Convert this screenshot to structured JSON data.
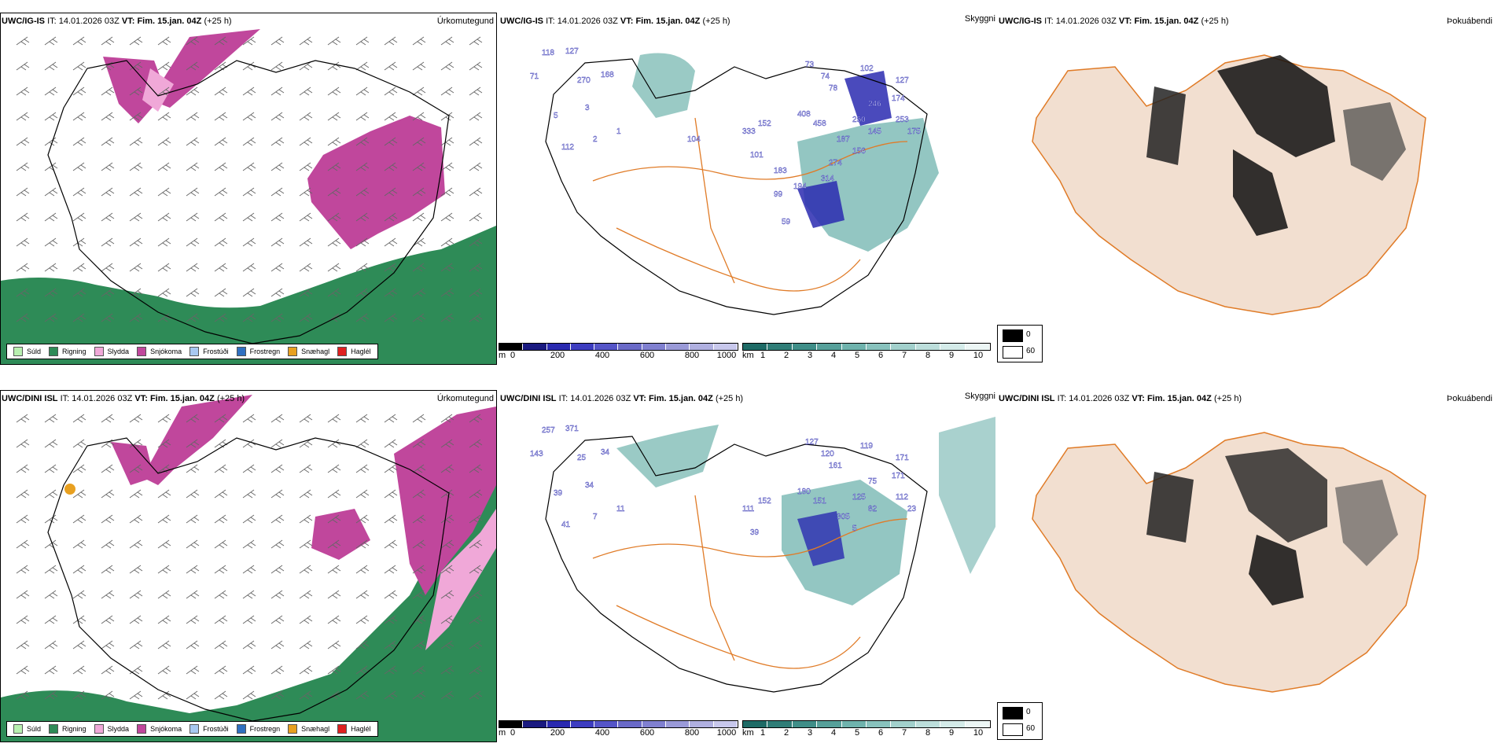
{
  "colors": {
    "sea_green": "#2e8b57",
    "snow": "#c0479c",
    "sleet": "#f0a8d8",
    "snow_light": "#f2b3dc",
    "ceiling_blue": "#2a2ab0",
    "vis_teal": "#6fb3ad",
    "road_orange": "#e07b27",
    "land_beige": "#f2dfd0"
  },
  "panels": [
    {
      "model": "UWC/IG-IS",
      "it_label": "IT:",
      "it_value": "14.01.2026 03Z",
      "vt_text": "VT: Fim. 15.jan. 04Z",
      "lead": "(+25 h)",
      "title": "Úrkomutegund",
      "chart_data": {
        "type": "map",
        "field": "precipitation type",
        "legend_classes": [
          "Súld",
          "Rigning",
          "Slydda",
          "Snjókoma",
          "Frostúði",
          "Frostregn",
          "Snæhagl",
          "Haglél"
        ]
      }
    },
    {
      "model": "UWC/IG-IS",
      "it_label": "IT:",
      "it_value": "14.01.2026 03Z",
      "vt_text": "VT: Fim. 15.jan. 04Z",
      "lead": "(+25 h)",
      "title": "Skyggni",
      "labels": [
        "118",
        "127",
        "71",
        "270",
        "168",
        "5",
        "3",
        "112",
        "1",
        "2",
        "73",
        "74",
        "78",
        "102",
        "246",
        "174",
        "127",
        "408",
        "458",
        "250",
        "333",
        "152",
        "187",
        "145",
        "253",
        "175",
        "101",
        "156",
        "183",
        "274",
        "194",
        "314",
        "99",
        "104",
        "59"
      ]
    },
    {
      "model": "UWC/IG-IS",
      "it_label": "IT:",
      "it_value": "14.01.2026 03Z",
      "vt_text": "VT: Fim. 15.jan. 04Z",
      "lead": "(+25 h)",
      "title": "Þokuábendi"
    },
    {
      "model": "UWC/DINI ISL",
      "it_label": "IT:",
      "it_value": "14.01.2026 03Z",
      "vt_text": "VT: Fim. 15.jan. 04Z",
      "lead": "(+25 h)",
      "title": "Úrkomutegund"
    },
    {
      "model": "UWC/DINI ISL",
      "it_label": "IT:",
      "it_value": "14.01.2026 03Z",
      "vt_text": "VT: Fim. 15.jan. 04Z",
      "lead": "(+25 h)",
      "title": "Skyggni",
      "labels": [
        "257",
        "371",
        "143",
        "25",
        "34",
        "39",
        "34",
        "41",
        "11",
        "7",
        "127",
        "120",
        "161",
        "119",
        "75",
        "171",
        "171",
        "180",
        "151",
        "125",
        "111",
        "152",
        "305",
        "82",
        "112",
        "23",
        "39",
        "5"
      ]
    },
    {
      "model": "UWC/DINI ISL",
      "it_label": "IT:",
      "it_value": "14.01.2026 03Z",
      "vt_text": "VT: Fim. 15.jan. 04Z",
      "lead": "(+25 h)",
      "title": "Þokuábendi"
    }
  ],
  "ptype_legend": [
    {
      "label": "Súld",
      "color": "#b8f0b0"
    },
    {
      "label": "Rigning",
      "color": "#2e8b57"
    },
    {
      "label": "Slydda",
      "color": "#f0a8d8"
    },
    {
      "label": "Snjókoma",
      "color": "#c0479c"
    },
    {
      "label": "Frostúði",
      "color": "#a8c8f0"
    },
    {
      "label": "Frostregn",
      "color": "#3070c0"
    },
    {
      "label": "Snæhagl",
      "color": "#e8a020"
    },
    {
      "label": "Haglél",
      "color": "#e02020"
    }
  ],
  "ceiling_scale": {
    "unit": "m",
    "ticks": [
      "0",
      "200",
      "400",
      "600",
      "800",
      "1000"
    ],
    "colors": [
      "#000000",
      "#1a1a80",
      "#2a2ab0",
      "#3d3dc0",
      "#5555c8",
      "#6a6ac8",
      "#8080d0",
      "#9a9ad8",
      "#b0b0e0",
      "#c8c8ec"
    ]
  },
  "vis_scale": {
    "unit": "km",
    "ticks": [
      "1",
      "2",
      "3",
      "4",
      "5",
      "6",
      "7",
      "8",
      "9",
      "10"
    ],
    "colors": [
      "#1e6b66",
      "#2f7d77",
      "#3f8e88",
      "#56a09a",
      "#6fb3ad",
      "#88c2bd",
      "#a2d0cc",
      "#bcdedb",
      "#d4ebe9",
      "#ecf6f5"
    ]
  },
  "fog_key": {
    "values": [
      "0",
      "60"
    ]
  }
}
